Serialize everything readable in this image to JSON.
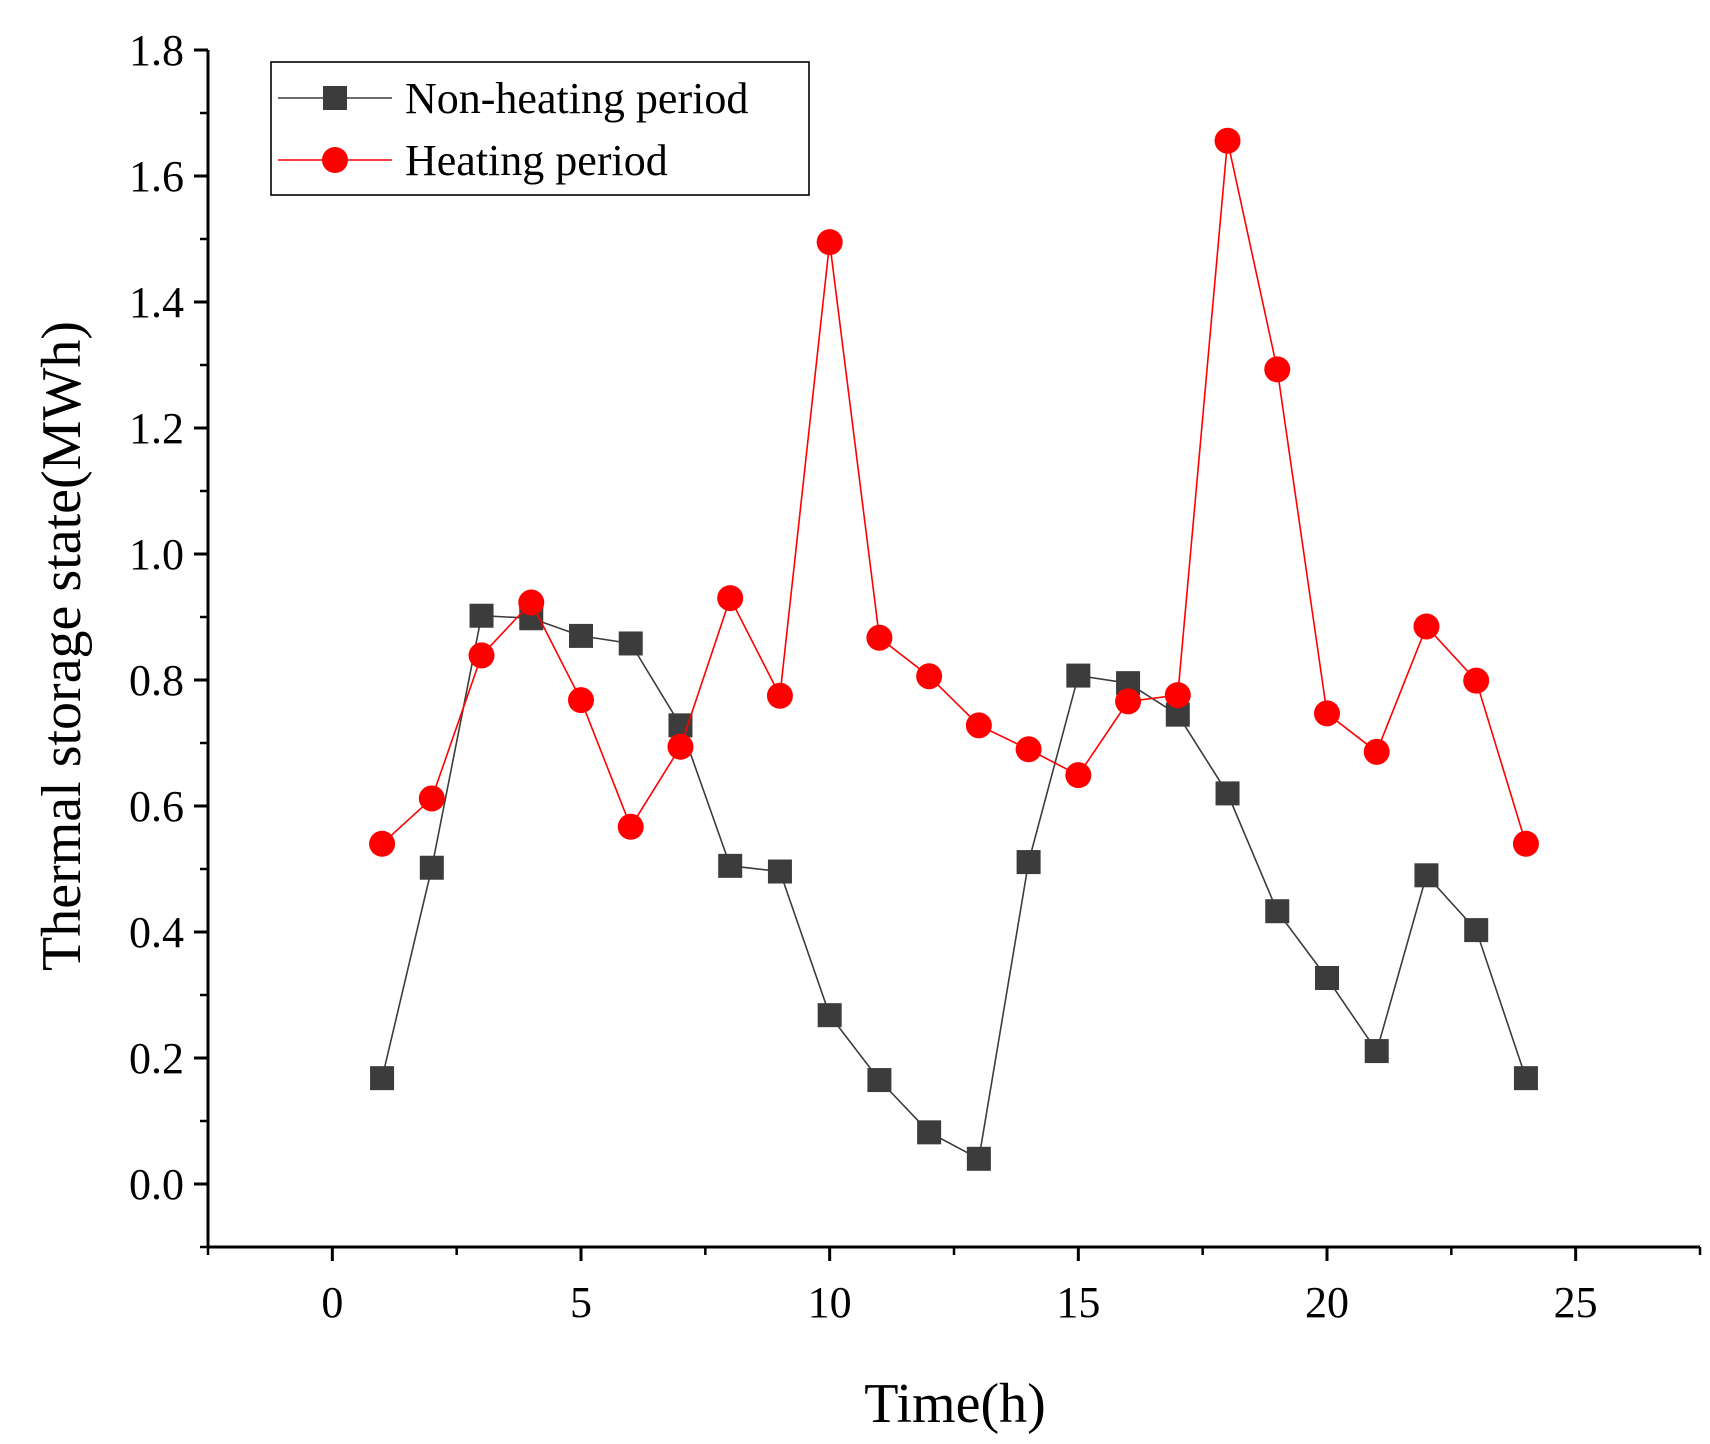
{
  "chart_data": {
    "type": "line",
    "title": "",
    "xlabel": "Time(h)",
    "ylabel": "Thermal storage state(MWh)",
    "xlim": [
      -2.5,
      27.5
    ],
    "ylim": [
      -0.1,
      1.8
    ],
    "xticks": [
      0,
      5,
      10,
      15,
      20,
      25
    ],
    "yticks": [
      0.0,
      0.2,
      0.4,
      0.6,
      0.8,
      1.0,
      1.2,
      1.4,
      1.6,
      1.8
    ],
    "xtick_labels": [
      "0",
      "5",
      "10",
      "15",
      "20",
      "25"
    ],
    "ytick_labels": [
      "0.0",
      "0.2",
      "0.4",
      "0.6",
      "0.8",
      "1.0",
      "1.2",
      "1.4",
      "1.6",
      "1.8"
    ],
    "legend_position": "top-left",
    "x": [
      1,
      2,
      3,
      4,
      5,
      6,
      7,
      8,
      9,
      10,
      11,
      12,
      13,
      14,
      15,
      16,
      17,
      18,
      19,
      20,
      21,
      22,
      23,
      24
    ],
    "series": [
      {
        "name": "Non-heating period",
        "color": "#3c3c3c",
        "marker": "square",
        "values": [
          0.168,
          0.502,
          0.902,
          0.898,
          0.87,
          0.858,
          0.728,
          0.505,
          0.496,
          0.268,
          0.165,
          0.082,
          0.04,
          0.511,
          0.807,
          0.795,
          0.745,
          0.62,
          0.433,
          0.327,
          0.211,
          0.49,
          0.403,
          0.168
        ]
      },
      {
        "name": "Heating period",
        "color": "#ff0000",
        "marker": "circle",
        "values": [
          0.54,
          0.612,
          0.839,
          0.923,
          0.768,
          0.567,
          0.694,
          0.93,
          0.775,
          1.495,
          0.867,
          0.806,
          0.728,
          0.69,
          0.649,
          0.766,
          0.776,
          1.656,
          1.293,
          0.747,
          0.686,
          0.885,
          0.799,
          0.54
        ]
      }
    ]
  }
}
